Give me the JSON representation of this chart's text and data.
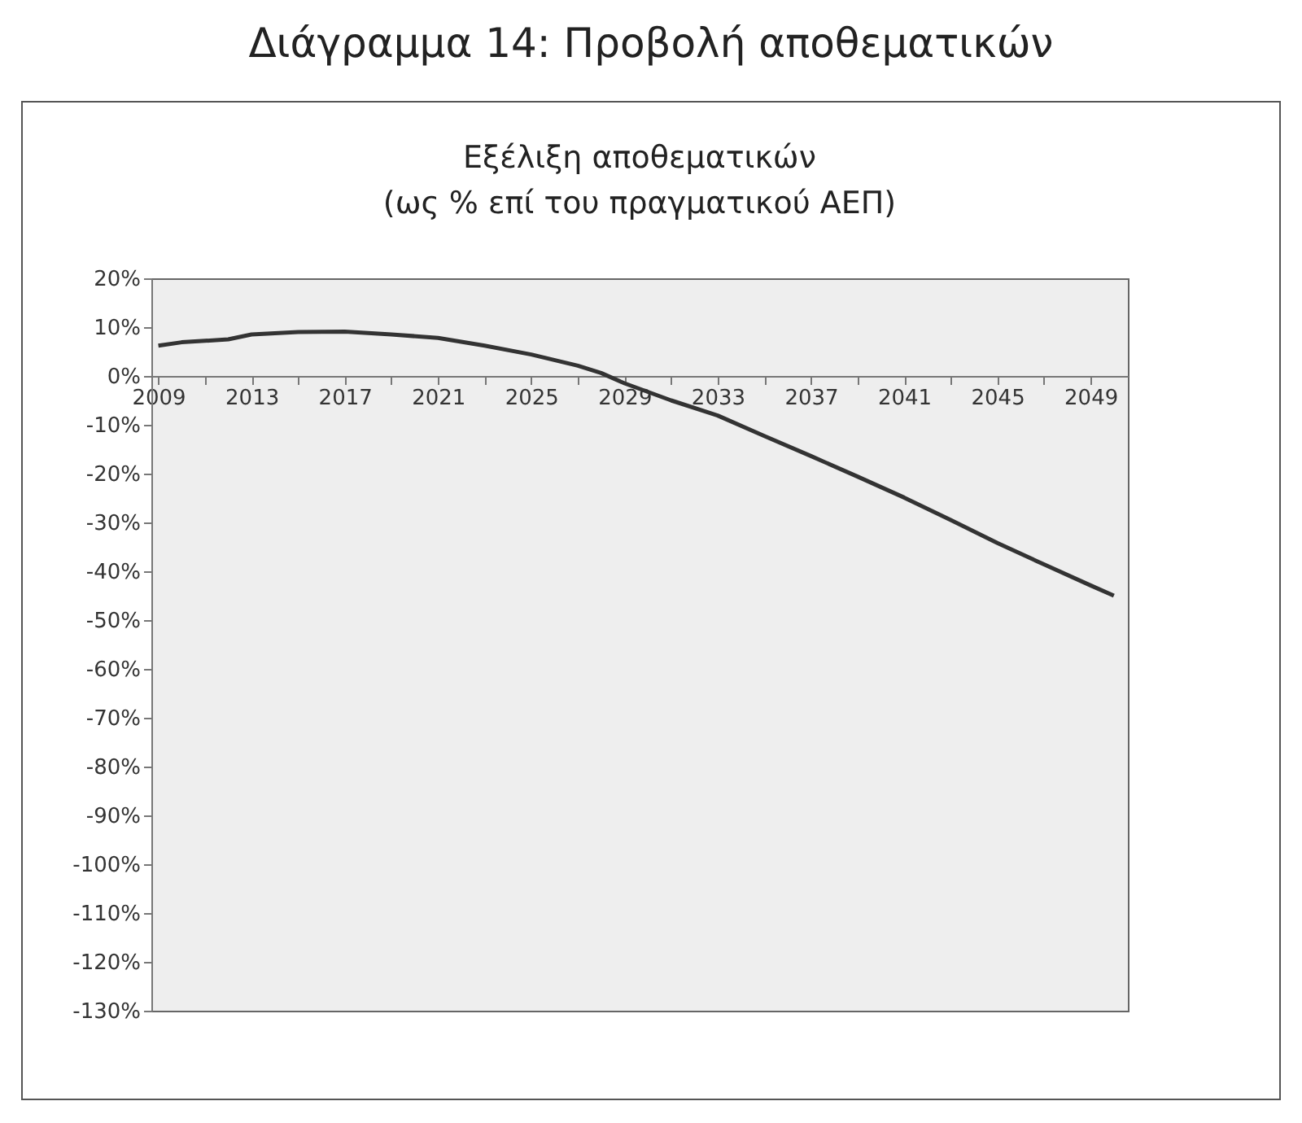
{
  "chart_data": {
    "type": "line",
    "title": "Διάγραμμα 14: Προβολή αποθεματικών",
    "subtitle": "Εξέλιξη αποθεματικών\n(ως % επί του πραγματικού ΑΕΠ)",
    "x": [
      2009,
      2010,
      2011,
      2012,
      2013,
      2015,
      2017,
      2019,
      2021,
      2023,
      2025,
      2027,
      2028,
      2029,
      2031,
      2033,
      2035,
      2037,
      2039,
      2041,
      2043,
      2045,
      2047,
      2049,
      2050
    ],
    "series": [
      {
        "color": "#333333",
        "values": [
          6.2,
          6.9,
          7.2,
          7.5,
          8.5,
          9.0,
          9.1,
          8.5,
          7.8,
          6.2,
          4.4,
          2.1,
          0.6,
          -1.5,
          -5.0,
          -8.1,
          -12.3,
          -16.4,
          -20.6,
          -24.9,
          -29.5,
          -34.2,
          -38.6,
          -42.9,
          -45.0
        ]
      }
    ],
    "xlim": [
      2008.7,
      2050.6
    ],
    "xticks": [
      2009,
      {
        "value": 2011,
        "label": null
      },
      2013,
      {
        "value": 2015,
        "label": null
      },
      2017,
      {
        "value": 2019,
        "label": null
      },
      2021,
      {
        "value": 2023,
        "label": null
      },
      2025,
      {
        "value": 2027,
        "label": null
      },
      2029,
      {
        "value": 2031,
        "label": null
      },
      2033,
      {
        "value": 2035,
        "label": null
      },
      2037,
      {
        "value": 2039,
        "label": null
      },
      2041,
      {
        "value": 2043,
        "label": null
      },
      2045,
      {
        "value": 2047,
        "label": null
      },
      2049
    ],
    "ylim": [
      -130,
      20
    ],
    "yticks": [
      {
        "value": 20,
        "label": "20%"
      },
      {
        "value": 10,
        "label": "10%"
      },
      {
        "value": 0,
        "label": "0%"
      },
      {
        "value": -10,
        "label": "-10%"
      },
      {
        "value": -20,
        "label": "-20%"
      },
      {
        "value": -30,
        "label": "-30%"
      },
      {
        "value": -40,
        "label": "-40%"
      },
      {
        "value": -50,
        "label": "-50%"
      },
      {
        "value": -60,
        "label": "-60%"
      },
      {
        "value": -70,
        "label": "-70%"
      },
      {
        "value": -80,
        "label": "-80%"
      },
      {
        "value": -90,
        "label": "-90%"
      },
      {
        "value": -100,
        "label": "-100%"
      },
      {
        "value": -110,
        "label": "-110%"
      },
      {
        "value": -120,
        "label": "-120%"
      },
      {
        "value": -130,
        "label": "-130%"
      }
    ],
    "grid": false,
    "legend": false,
    "line_style": "solid",
    "marker": "none"
  }
}
